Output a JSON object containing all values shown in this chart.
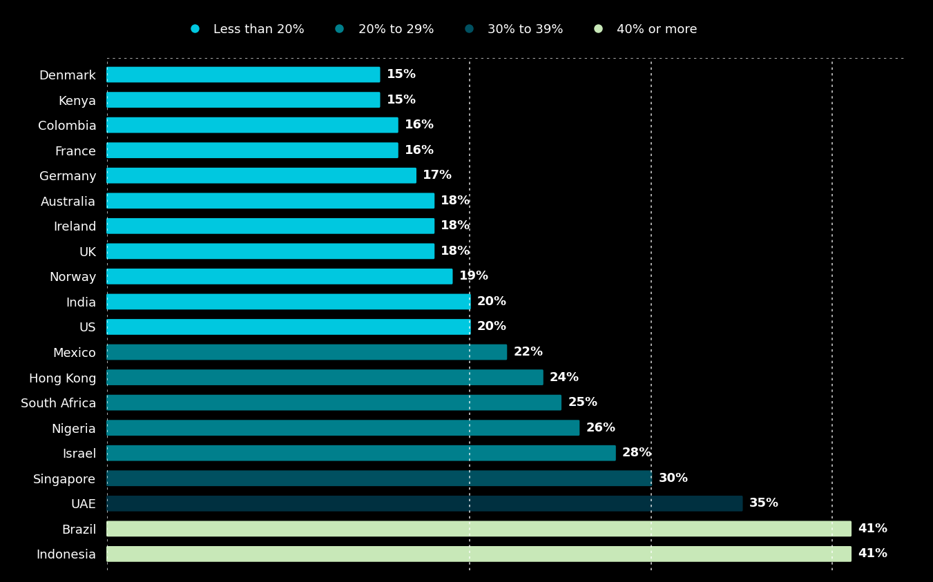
{
  "countries": [
    "Denmark",
    "Kenya",
    "Colombia",
    "France",
    "Germany",
    "Australia",
    "Ireland",
    "UK",
    "Norway",
    "India",
    "US",
    "Mexico",
    "Hong Kong",
    "South Africa",
    "Nigeria",
    "Israel",
    "Singapore",
    "UAE",
    "Brazil",
    "Indonesia"
  ],
  "values": [
    15,
    15,
    16,
    16,
    17,
    18,
    18,
    18,
    19,
    20,
    20,
    22,
    24,
    25,
    26,
    28,
    30,
    35,
    41,
    41
  ],
  "bar_colors": [
    "#00c8e0",
    "#00c8e0",
    "#00c8e0",
    "#00c8e0",
    "#00c8e0",
    "#00c8e0",
    "#00c8e0",
    "#00c8e0",
    "#00c8e0",
    "#00c8e0",
    "#00c8e0",
    "#007f8c",
    "#007f8c",
    "#007f8c",
    "#007f8c",
    "#007f8c",
    "#005060",
    "#003040",
    "#c8e8b8",
    "#c8e8b8"
  ],
  "legend_labels": [
    "Less than 20%",
    "20% to 29%",
    "30% to 39%",
    "40% or more"
  ],
  "legend_colors": [
    "#00c8e0",
    "#007f8c",
    "#005060",
    "#c8e8b8"
  ],
  "background_color": "#000000",
  "text_color": "#ffffff",
  "bar_label_color": "#ffffff",
  "xlim": [
    0,
    44
  ],
  "vline_positions": [
    20,
    30,
    40
  ],
  "bar_height": 0.52,
  "value_label_fontsize": 13,
  "country_label_fontsize": 13,
  "legend_fontsize": 13,
  "figsize": [
    13.51,
    8.43
  ],
  "dpi": 100
}
